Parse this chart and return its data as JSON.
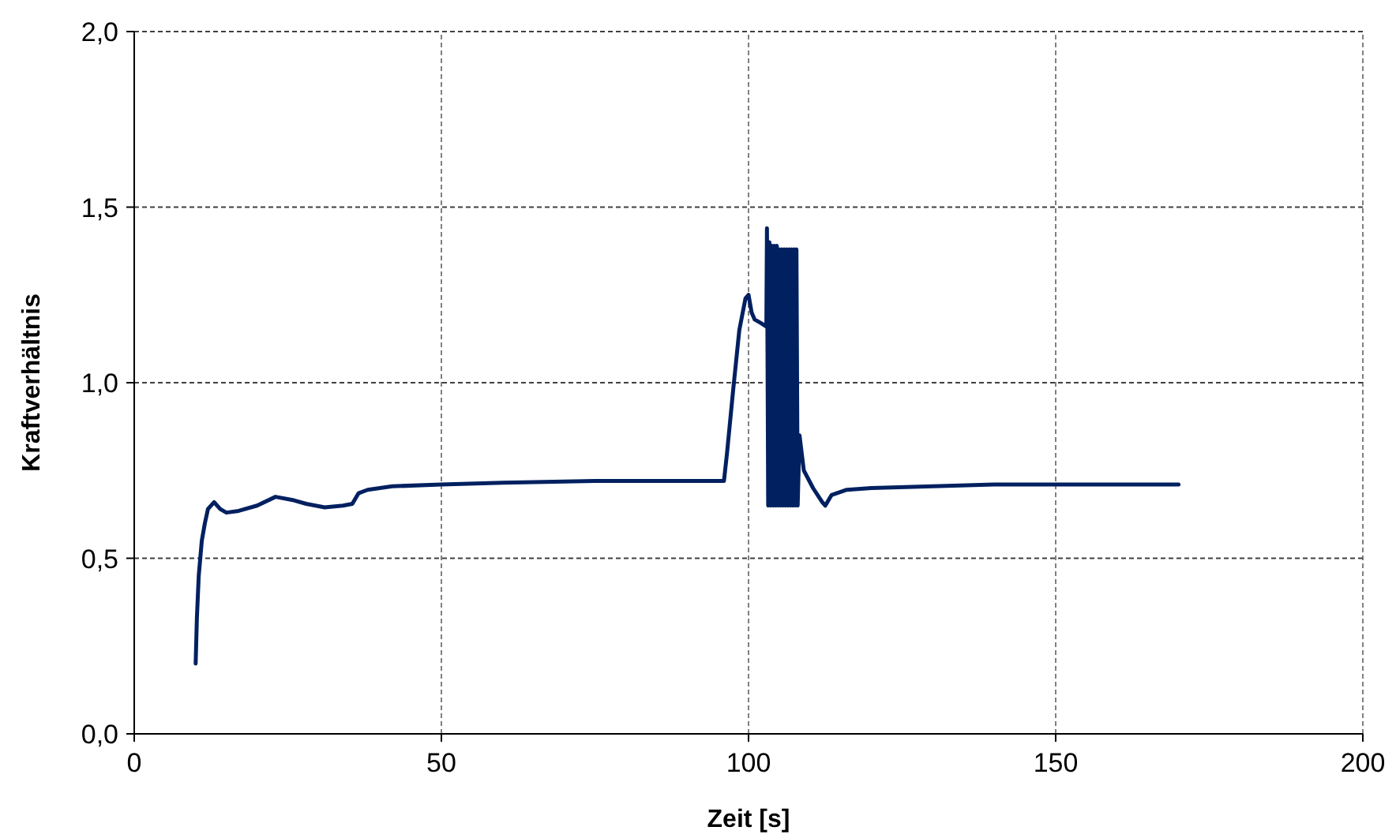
{
  "chart_data": {
    "type": "line",
    "xlabel": "Zeit [s]",
    "ylabel": "Kraftverhältnis",
    "xlim": [
      0,
      200
    ],
    "ylim": [
      0,
      2
    ],
    "xticks": [
      0,
      50,
      100,
      150,
      200
    ],
    "yticks": [
      {
        "value": 0,
        "label": "0,0"
      },
      {
        "value": 0.5,
        "label": "0,5"
      },
      {
        "value": 1,
        "label": "1,0"
      },
      {
        "value": 1.5,
        "label": "1,5"
      },
      {
        "value": 2,
        "label": "2,0"
      }
    ],
    "grid": true,
    "marker": "none",
    "line_style": "solid",
    "series": [
      {
        "color": "#002060",
        "x": [
          10,
          10.2,
          10.5,
          11,
          11.5,
          12,
          13,
          14,
          15,
          17,
          20,
          23,
          26,
          28,
          31,
          34,
          35.5,
          36.5,
          38,
          42,
          50,
          60,
          75,
          96,
          96.5,
          97.5,
          98.5,
          99.5,
          100,
          100.5,
          101,
          102,
          102.9,
          103,
          103.2,
          103.4,
          103.6,
          103.8,
          104,
          104.2,
          104.4,
          104.6,
          104.8,
          105,
          105.2,
          105.4,
          105.6,
          105.8,
          106,
          106.2,
          106.4,
          106.6,
          106.8,
          107,
          107.2,
          107.4,
          107.6,
          107.8,
          108,
          108.3,
          109,
          110.5,
          112,
          112.5,
          113.5,
          116,
          120,
          130,
          140,
          170
        ],
        "values": [
          0.2,
          0.33,
          0.45,
          0.55,
          0.6,
          0.64,
          0.66,
          0.64,
          0.63,
          0.635,
          0.65,
          0.675,
          0.665,
          0.655,
          0.645,
          0.65,
          0.655,
          0.685,
          0.695,
          0.705,
          0.71,
          0.715,
          0.72,
          0.72,
          0.8,
          0.98,
          1.15,
          1.24,
          1.25,
          1.2,
          1.18,
          1.17,
          1.16,
          1.44,
          0.65,
          1.4,
          0.65,
          1.39,
          0.65,
          1.39,
          0.65,
          1.39,
          0.65,
          1.38,
          0.65,
          1.38,
          0.65,
          1.38,
          0.65,
          1.38,
          0.65,
          1.38,
          0.65,
          1.38,
          0.65,
          1.38,
          0.65,
          1.38,
          0.65,
          0.85,
          0.75,
          0.7,
          0.66,
          0.65,
          0.68,
          0.695,
          0.7,
          0.705,
          0.71,
          0.71
        ]
      }
    ]
  }
}
